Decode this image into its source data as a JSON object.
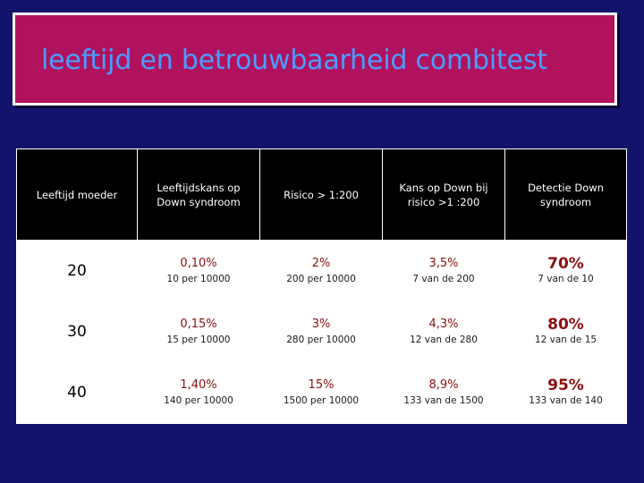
{
  "title": "leeftijd en betrouwbaarheid combitest",
  "colors": {
    "background": "#13136b",
    "title_bg": "#b0125e",
    "title_text": "#4a9dff",
    "value_red": "#8a1010"
  },
  "table": {
    "headers": [
      "Leeftijd moeder",
      "Leeftijdskans op Down syndroom",
      "Risico > 1:200",
      "Kans op Down bij risico >1 :200",
      "Detectie Down syndroom"
    ],
    "rows": [
      {
        "age": "20",
        "cells": [
          {
            "main": "0,10%",
            "sub": "10 per 10000"
          },
          {
            "main": "2%",
            "sub": "200 per 10000"
          },
          {
            "main": "3,5%",
            "sub": "7 van de 200"
          },
          {
            "main": "70%",
            "sub": "7 van de 10"
          }
        ]
      },
      {
        "age": "30",
        "cells": [
          {
            "main": "0,15%",
            "sub": "15 per 10000"
          },
          {
            "main": "3%",
            "sub": "280 per 10000"
          },
          {
            "main": "4,3%",
            "sub": "12 van de 280"
          },
          {
            "main": "80%",
            "sub": "12 van de 15"
          }
        ]
      },
      {
        "age": "40",
        "cells": [
          {
            "main": "1,40%",
            "sub": "140 per 10000"
          },
          {
            "main": "15%",
            "sub": "1500 per 10000"
          },
          {
            "main": "8,9%",
            "sub": "133 van de 1500"
          },
          {
            "main": "95%",
            "sub": "133 van de 140"
          }
        ]
      }
    ]
  }
}
